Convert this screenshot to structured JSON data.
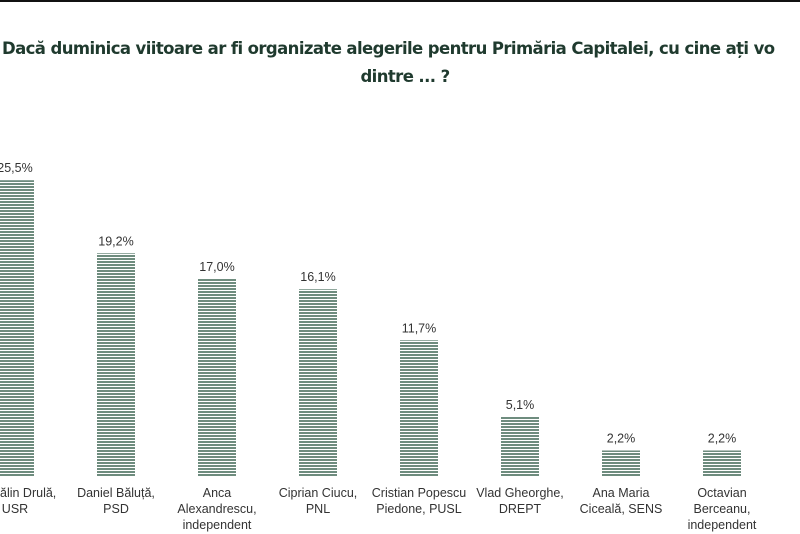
{
  "chart_data": {
    "type": "bar",
    "title": [
      "Dacă duminica viitoare ar fi organizate alegerile pentru Primăria Capitalei, cu cine ați vo",
      "dintre ... ?"
    ],
    "categories": [
      [
        "ălin Drulă,",
        "USR"
      ],
      [
        "Daniel Băluță,",
        "PSD"
      ],
      [
        "Anca",
        "Alexandrescu,",
        "independent"
      ],
      [
        "Ciprian Ciucu,",
        "PNL"
      ],
      [
        "Cristian Popescu",
        "Piedone, PUSL"
      ],
      [
        "Vlad Gheorghe,",
        "DREPT"
      ],
      [
        "Ana Maria",
        "Ciceală, SENS"
      ],
      [
        "Octavian",
        "Berceanu,",
        "independent"
      ]
    ],
    "values": [
      25.5,
      19.2,
      17.0,
      16.1,
      11.7,
      5.1,
      2.2,
      2.2
    ],
    "value_labels": [
      "25,5%",
      "19,2%",
      "17,0%",
      "16,1%",
      "11,7%",
      "5,1%",
      "2,2%",
      "2,2%"
    ],
    "color": "#6e8c7e"
  }
}
